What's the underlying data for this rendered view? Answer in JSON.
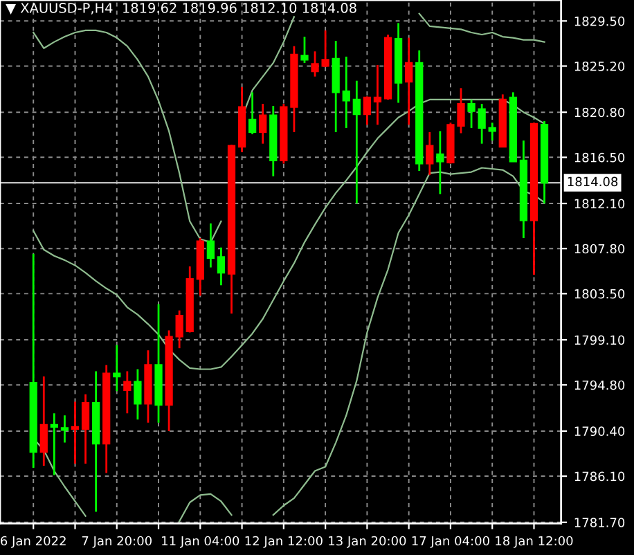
{
  "chart_data": {
    "type": "candlestick",
    "title": "▼ XAUUSD-P,H4  1819.62 1819.96 1812.10 1814.08",
    "categories": [
      "6 Jan 2022",
      null,
      null,
      null,
      null,
      null,
      null,
      null,
      "7 Jan 20:00",
      null,
      null,
      null,
      null,
      null,
      null,
      null,
      "11 Jan 04:00",
      null,
      null,
      null,
      null,
      null,
      null,
      null,
      "12 Jan 12:00",
      null,
      null,
      null,
      null,
      null,
      null,
      null,
      "13 Jan 20:00",
      null,
      null,
      null,
      null,
      null,
      null,
      null,
      "17 Jan 04:00",
      null,
      null,
      null,
      null,
      null,
      null,
      null,
      "18 Jan 12:00",
      null
    ],
    "ohlc": [
      [
        1795.0,
        1807.3,
        1786.9,
        1788.4
      ],
      [
        1788.4,
        1795.6,
        1787.1,
        1791.0
      ],
      [
        1791.0,
        1792.1,
        1786.2,
        1790.8
      ],
      [
        1790.7,
        1791.9,
        1789.3,
        1790.5
      ],
      [
        1790.6,
        1793.2,
        1787.3,
        1790.8
      ],
      [
        1790.6,
        1793.9,
        1787.3,
        1793.1
      ],
      [
        1793.1,
        1796.1,
        1782.7,
        1789.2
      ],
      [
        1789.2,
        1796.7,
        1786.4,
        1795.9
      ],
      [
        1795.9,
        1798.6,
        1794.2,
        1795.6
      ],
      [
        1794.3,
        1796.1,
        1792.1,
        1795.1
      ],
      [
        1795.1,
        1796.3,
        1791.5,
        1793.0
      ],
      [
        1793.0,
        1798.1,
        1791.2,
        1796.7
      ],
      [
        1796.7,
        1802.5,
        1791.2,
        1792.9
      ],
      [
        1792.9,
        1800.0,
        1790.4,
        1799.4
      ],
      [
        1799.4,
        1801.9,
        1798.3,
        1801.4
      ],
      [
        1799.9,
        1806.1,
        1799.8,
        1804.9
      ],
      [
        1804.9,
        1808.8,
        1803.3,
        1808.5
      ],
      [
        1808.5,
        1810.2,
        1806.0,
        1806.9
      ],
      [
        1807.0,
        1807.9,
        1804.3,
        1805.5
      ],
      [
        1805.4,
        1817.7,
        1801.6,
        1817.6
      ],
      [
        1817.5,
        1823.2,
        1817.0,
        1821.3
      ],
      [
        1820.1,
        1822.7,
        1818.7,
        1818.9
      ],
      [
        1818.9,
        1821.6,
        1817.8,
        1820.5
      ],
      [
        1820.5,
        1821.4,
        1814.7,
        1816.2
      ],
      [
        1816.2,
        1821.6,
        1815.9,
        1821.3
      ],
      [
        1821.3,
        1827.1,
        1818.9,
        1826.3
      ],
      [
        1826.2,
        1828.0,
        1825.5,
        1825.8
      ],
      [
        1824.7,
        1826.6,
        1824.2,
        1825.4
      ],
      [
        1825.2,
        1828.6,
        1825.1,
        1825.8
      ],
      [
        1825.9,
        1827.6,
        1818.9,
        1822.7
      ],
      [
        1822.8,
        1826.1,
        1819.3,
        1821.9
      ],
      [
        1822.0,
        1823.8,
        1812.1,
        1820.6
      ],
      [
        1820.6,
        1822.3,
        1819.6,
        1822.2
      ],
      [
        1821.8,
        1825.3,
        1819.6,
        1822.2
      ],
      [
        1822.1,
        1828.2,
        1822.0,
        1827.9
      ],
      [
        1827.8,
        1829.3,
        1821.7,
        1823.6
      ],
      [
        1823.7,
        1827.9,
        1819.6,
        1825.5
      ],
      [
        1825.5,
        1826.7,
        1815.2,
        1815.9
      ],
      [
        1815.9,
        1818.9,
        1814.8,
        1817.6
      ],
      [
        1816.8,
        1819.0,
        1813.0,
        1816.1
      ],
      [
        1816.0,
        1819.8,
        1815.9,
        1819.6
      ],
      [
        1819.5,
        1823.1,
        1818.8,
        1821.6
      ],
      [
        1821.6,
        1822.0,
        1819.3,
        1820.9
      ],
      [
        1821.1,
        1821.6,
        1817.8,
        1819.3
      ],
      [
        1819.3,
        1819.8,
        1818.1,
        1819.0
      ],
      [
        1817.5,
        1822.5,
        1817.5,
        1822.0
      ],
      [
        1822.2,
        1822.7,
        1816.1,
        1816.1
      ],
      [
        1816.2,
        1818.1,
        1808.8,
        1810.5
      ],
      [
        1810.5,
        1819.8,
        1805.3,
        1819.7
      ],
      [
        1819.62,
        1819.96,
        1812.1,
        1814.08
      ]
    ],
    "colors": [
      "#00ff00",
      "#ff0000",
      "#00ff00",
      "#00ff00",
      "#ff0000",
      "#ff0000",
      "#00ff00",
      "#ff0000",
      "#00ff00",
      "#ff0000",
      "#00ff00",
      "#ff0000",
      "#00ff00",
      "#ff0000",
      "#ff0000",
      "#ff0000",
      "#ff0000",
      "#00ff00",
      "#00ff00",
      "#ff0000",
      "#ff0000",
      "#00ff00",
      "#ff0000",
      "#00ff00",
      "#ff0000",
      "#ff0000",
      "#00ff00",
      "#ff0000",
      "#ff0000",
      "#00ff00",
      "#00ff00",
      "#00ff00",
      "#ff0000",
      "#ff0000",
      "#ff0000",
      "#00ff00",
      "#ff0000",
      "#00ff00",
      "#ff0000",
      "#00ff00",
      "#ff0000",
      "#ff0000",
      "#00ff00",
      "#00ff00",
      "#00ff00",
      "#ff0000",
      "#00ff00",
      "#00ff00",
      "#ff0000",
      "#00ff00"
    ],
    "series": [
      {
        "type": "line",
        "color": "#8fbc8f",
        "values": [
          1828.4,
          1826.9,
          1827.5,
          1828.0,
          1828.4,
          1828.6,
          1828.6,
          1828.4,
          1827.9,
          1827.1,
          1825.8,
          1824.2,
          1821.9,
          1819.0,
          1815.0,
          1810.4,
          1808.7,
          1808.4,
          1810.4,
          null,
          1820.3,
          1822.9,
          1824.2,
          1825.5,
          1827.5,
          1829.9,
          null,
          null,
          null,
          null,
          null,
          null,
          null,
          null,
          null,
          null,
          null,
          1830.2,
          1829.0,
          1828.9,
          1828.8,
          1828.7,
          1828.4,
          1828.2,
          1828.4,
          1828.0,
          1827.9,
          1827.7,
          1827.7,
          1827.5
        ]
      },
      {
        "type": "line",
        "color": "#8fbc8f",
        "values": [
          1809.5,
          1807.7,
          1807.1,
          1806.7,
          1806.2,
          1805.5,
          1804.7,
          1804.0,
          1803.4,
          1802.2,
          1801.5,
          1800.6,
          1799.6,
          1798.2,
          1797.2,
          1796.4,
          1796.3,
          1796.3,
          1796.5,
          1797.5,
          1798.6,
          1799.7,
          1801.1,
          1802.9,
          1804.7,
          1806.4,
          1808.4,
          1810.1,
          1811.7,
          1813.1,
          1814.3,
          1815.6,
          1817.0,
          1818.3,
          1819.3,
          1820.3,
          1820.9,
          1821.6,
          1822.0,
          1822.0,
          1822.0,
          1822.0,
          1822.0,
          1822.0,
          1822.0,
          1822.0,
          1821.5,
          1820.8,
          1820.3,
          1819.7
        ]
      },
      {
        "type": "line",
        "color": "#8fbc8f",
        "values": [
          1789.7,
          1788.6,
          1786.6,
          1785.1,
          1783.7,
          1782.3,
          null,
          null,
          null,
          null,
          null,
          null,
          null,
          null,
          1781.8,
          1783.6,
          1784.3,
          1784.4,
          1783.7,
          1782.4,
          null,
          null,
          null,
          1782.4,
          1783.3,
          1784.0,
          1785.3,
          1786.6,
          1787.0,
          1789.3,
          1791.9,
          1795.2,
          1799.8,
          1803.1,
          1805.8,
          1809.3,
          1811.0,
          1813.0,
          1815.0,
          1815.1,
          1814.9,
          1815.0,
          1815.1,
          1815.5,
          1815.4,
          1815.3,
          1814.7,
          1813.3,
          1812.9,
          1812.2
        ]
      }
    ],
    "ylim": [
      1781.6,
      1831.5
    ],
    "yticks": [
      {
        "value": 1829.5,
        "label": "1829.50"
      },
      {
        "value": 1825.2,
        "label": "1825.20"
      },
      {
        "value": 1820.8,
        "label": "1820.80"
      },
      {
        "value": 1816.5,
        "label": "1816.50"
      },
      {
        "value": 1812.1,
        "label": "1812.10"
      },
      {
        "value": 1807.8,
        "label": "1807.80"
      },
      {
        "value": 1803.5,
        "label": "1803.50"
      },
      {
        "value": 1799.1,
        "label": "1799.10"
      },
      {
        "value": 1794.8,
        "label": "1794.80"
      },
      {
        "value": 1790.4,
        "label": "1790.40"
      },
      {
        "value": 1786.1,
        "label": "1786.10"
      },
      {
        "value": 1781.7,
        "label": "1781.70"
      }
    ],
    "ref_lines": [
      {
        "axis": "y",
        "value": 1814.08,
        "label": "1814.08",
        "color": "#c0c0c0"
      }
    ],
    "grid": true
  }
}
